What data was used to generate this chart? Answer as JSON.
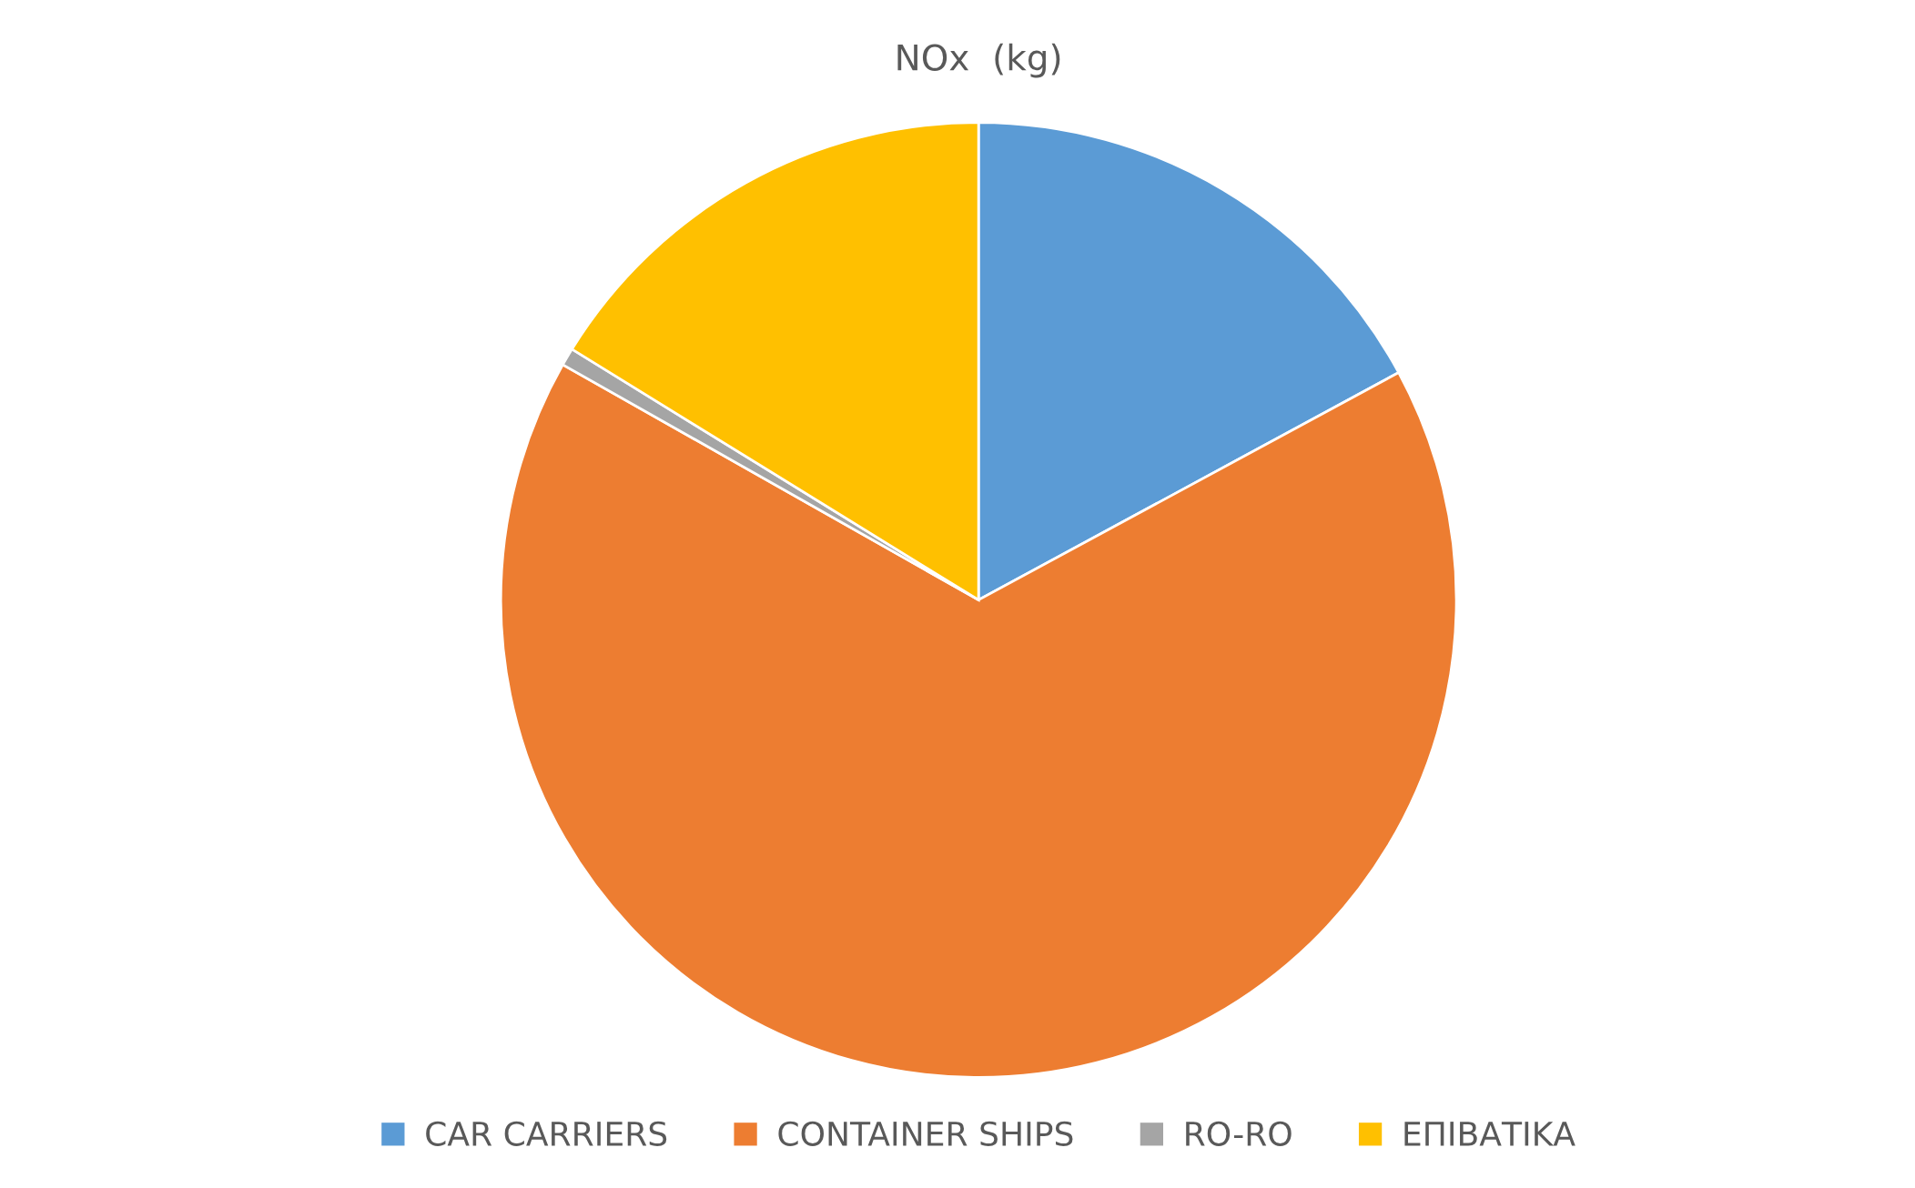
{
  "chart_data": {
    "type": "pie",
    "title": "NOx  (kg)",
    "categories": [
      "CAR CARRIERS",
      "CONTAINER SHIPS",
      "RO-RO",
      "ΕΠΙΒΑΤΙΚΑ"
    ],
    "values": [
      17.1,
      66.1,
      0.6,
      16.2
    ],
    "colors": [
      "#5b9bd5",
      "#ed7d31",
      "#a5a5a5",
      "#ffc000"
    ],
    "legend": "bottom"
  }
}
